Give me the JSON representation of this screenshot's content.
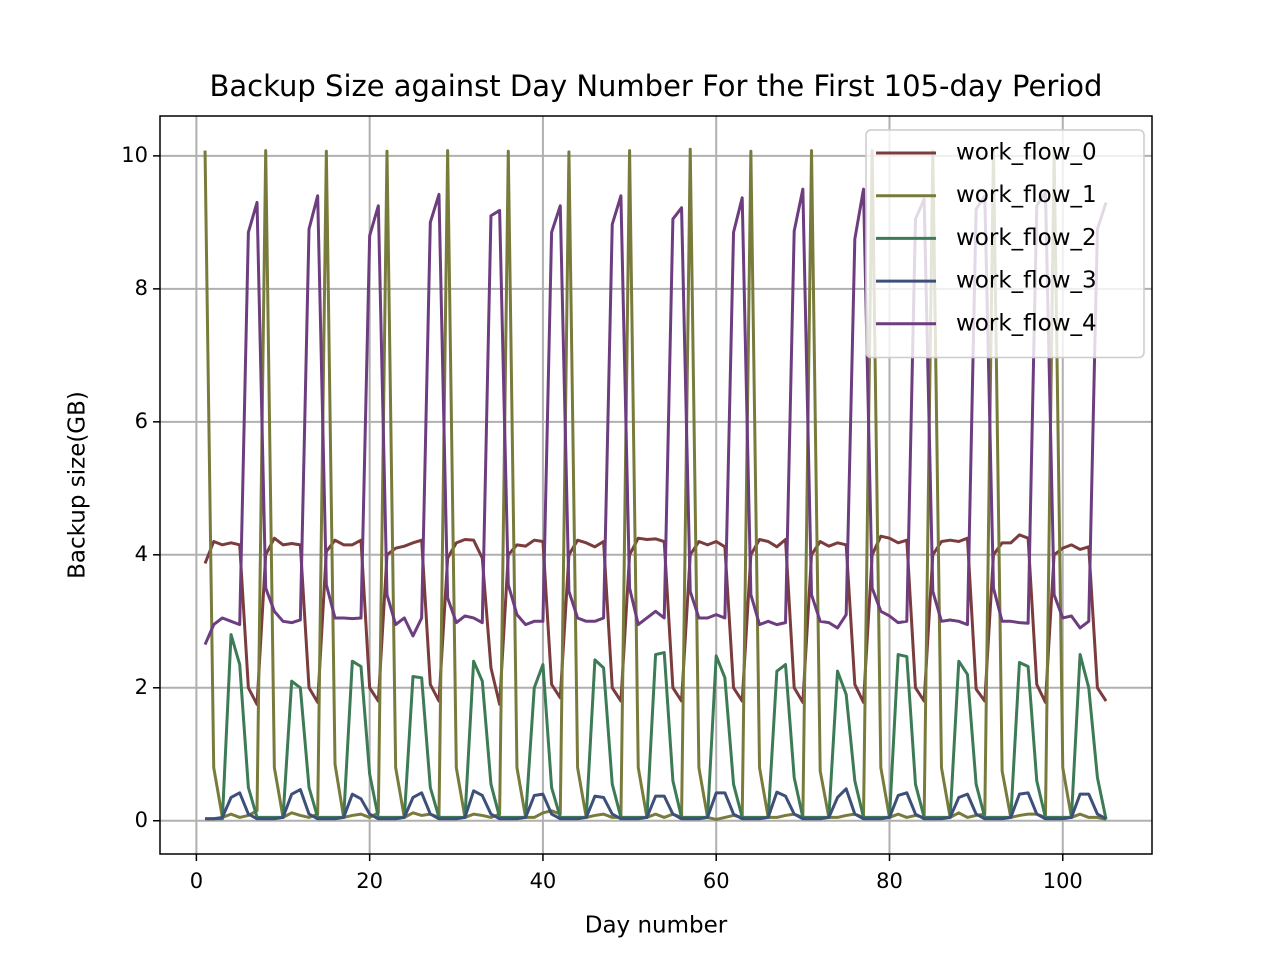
{
  "chart_data": {
    "type": "line",
    "title": "Backup Size against Day Number For the First 105-day Period",
    "xlabel": "Day number",
    "ylabel": "Backup size(GB)",
    "x": [
      1,
      2,
      3,
      4,
      5,
      6,
      7,
      8,
      9,
      10,
      11,
      12,
      13,
      14,
      15,
      16,
      17,
      18,
      19,
      20,
      21,
      22,
      23,
      24,
      25,
      26,
      27,
      28,
      29,
      30,
      31,
      32,
      33,
      34,
      35,
      36,
      37,
      38,
      39,
      40,
      41,
      42,
      43,
      44,
      45,
      46,
      47,
      48,
      49,
      50,
      51,
      52,
      53,
      54,
      55,
      56,
      57,
      58,
      59,
      60,
      61,
      62,
      63,
      64,
      65,
      66,
      67,
      68,
      69,
      70,
      71,
      72,
      73,
      74,
      75,
      76,
      77,
      78,
      79,
      80,
      81,
      82,
      83,
      84,
      85,
      86,
      87,
      88,
      89,
      90,
      91,
      92,
      93,
      94,
      95,
      96,
      97,
      98,
      99,
      100,
      101,
      102,
      103,
      104,
      105
    ],
    "series": [
      {
        "name": "work_flow_0",
        "color": "#7a3c3c",
        "values": [
          3.87,
          4.2,
          4.15,
          4.18,
          4.15,
          2.0,
          1.75,
          4.0,
          4.25,
          4.15,
          4.17,
          4.15,
          2.0,
          1.78,
          4.05,
          4.22,
          4.15,
          4.15,
          4.22,
          2.0,
          1.8,
          4.0,
          4.1,
          4.13,
          4.18,
          4.22,
          2.05,
          1.8,
          3.95,
          4.18,
          4.23,
          4.22,
          3.95,
          2.3,
          1.75,
          4.0,
          4.15,
          4.13,
          4.22,
          4.2,
          2.05,
          1.85,
          4.0,
          4.22,
          4.18,
          4.12,
          4.2,
          2.0,
          1.8,
          4.0,
          4.25,
          4.23,
          4.24,
          4.2,
          2.0,
          1.8,
          4.0,
          4.2,
          4.15,
          4.2,
          4.12,
          2.0,
          1.8,
          4.0,
          4.23,
          4.2,
          4.12,
          4.23,
          2.0,
          1.78,
          4.0,
          4.2,
          4.13,
          4.18,
          4.15,
          2.05,
          1.78,
          4.0,
          4.28,
          4.25,
          4.18,
          4.22,
          2.0,
          1.8,
          4.0,
          4.2,
          4.22,
          4.2,
          4.25,
          1.98,
          1.8,
          4.0,
          4.18,
          4.18,
          4.3,
          4.25,
          2.05,
          1.78,
          4.0,
          4.1,
          4.15,
          4.08,
          4.12,
          2.0,
          1.8
        ]
      },
      {
        "name": "work_flow_1",
        "color": "#787b3c",
        "values": [
          10.08,
          0.8,
          0.05,
          0.1,
          0.05,
          0.08,
          0.15,
          10.08,
          0.8,
          0.05,
          0.12,
          0.08,
          0.05,
          0.1,
          10.07,
          0.85,
          0.05,
          0.08,
          0.1,
          0.05,
          0.12,
          10.07,
          0.8,
          0.05,
          0.12,
          0.08,
          0.1,
          0.05,
          10.08,
          0.8,
          0.05,
          0.1,
          0.08,
          0.05,
          0.1,
          10.07,
          0.8,
          0.05,
          0.05,
          0.12,
          0.15,
          0.1,
          10.06,
          0.8,
          0.05,
          0.08,
          0.1,
          0.05,
          0.05,
          10.08,
          0.8,
          0.05,
          0.1,
          0.05,
          0.1,
          0.05,
          10.1,
          0.8,
          0.05,
          0.02,
          0.05,
          0.08,
          0.05,
          10.07,
          0.8,
          0.05,
          0.05,
          0.08,
          0.1,
          0.05,
          10.08,
          0.75,
          0.05,
          0.05,
          0.08,
          0.1,
          0.05,
          10.08,
          0.8,
          0.05,
          0.1,
          0.05,
          0.08,
          0.05,
          10.07,
          0.8,
          0.05,
          0.12,
          0.05,
          0.08,
          0.1,
          10.08,
          0.75,
          0.05,
          0.08,
          0.1,
          0.1,
          0.05,
          10.08,
          0.8,
          0.05,
          0.1,
          0.05,
          0.05,
          0.02
        ]
      },
      {
        "name": "work_flow_2",
        "color": "#3d7b56",
        "values": [
          0.03,
          0.03,
          0.03,
          2.8,
          2.35,
          0.5,
          0.05,
          0.05,
          0.05,
          0.05,
          2.1,
          2.0,
          0.5,
          0.05,
          0.05,
          0.05,
          0.05,
          2.4,
          2.32,
          0.7,
          0.05,
          0.05,
          0.05,
          0.05,
          2.17,
          2.15,
          0.5,
          0.05,
          0.05,
          0.05,
          0.05,
          2.4,
          2.1,
          0.55,
          0.05,
          0.05,
          0.05,
          0.05,
          2.0,
          2.35,
          0.5,
          0.05,
          0.05,
          0.05,
          0.05,
          2.42,
          2.3,
          0.55,
          0.05,
          0.05,
          0.05,
          0.05,
          2.5,
          2.53,
          0.6,
          0.05,
          0.05,
          0.05,
          0.05,
          2.48,
          2.15,
          0.55,
          0.05,
          0.05,
          0.05,
          0.05,
          2.25,
          2.35,
          0.65,
          0.05,
          0.05,
          0.05,
          0.05,
          2.25,
          1.9,
          0.6,
          0.05,
          0.05,
          0.05,
          0.05,
          2.5,
          2.47,
          0.55,
          0.05,
          0.05,
          0.05,
          0.05,
          2.4,
          2.2,
          0.55,
          0.05,
          0.05,
          0.05,
          0.05,
          2.38,
          2.32,
          0.6,
          0.05,
          0.05,
          0.05,
          0.05,
          2.5,
          2.0,
          0.65,
          0.02
        ]
      },
      {
        "name": "work_flow_3",
        "color": "#3d507a",
        "values": [
          0.03,
          0.03,
          0.05,
          0.35,
          0.42,
          0.1,
          0.03,
          0.03,
          0.03,
          0.05,
          0.4,
          0.47,
          0.1,
          0.03,
          0.03,
          0.03,
          0.05,
          0.4,
          0.33,
          0.1,
          0.03,
          0.03,
          0.03,
          0.05,
          0.35,
          0.42,
          0.1,
          0.03,
          0.03,
          0.03,
          0.05,
          0.45,
          0.38,
          0.1,
          0.03,
          0.03,
          0.03,
          0.05,
          0.38,
          0.4,
          0.1,
          0.03,
          0.03,
          0.03,
          0.05,
          0.37,
          0.35,
          0.1,
          0.03,
          0.03,
          0.03,
          0.05,
          0.37,
          0.37,
          0.1,
          0.03,
          0.03,
          0.03,
          0.05,
          0.42,
          0.42,
          0.1,
          0.03,
          0.03,
          0.03,
          0.05,
          0.43,
          0.37,
          0.1,
          0.03,
          0.03,
          0.03,
          0.05,
          0.35,
          0.48,
          0.1,
          0.03,
          0.03,
          0.03,
          0.05,
          0.38,
          0.42,
          0.1,
          0.03,
          0.03,
          0.03,
          0.05,
          0.35,
          0.4,
          0.1,
          0.03,
          0.03,
          0.03,
          0.05,
          0.4,
          0.42,
          0.1,
          0.03,
          0.03,
          0.03,
          0.05,
          0.4,
          0.4,
          0.1,
          0.03
        ]
      },
      {
        "name": "work_flow_4",
        "color": "#6d3d80",
        "values": [
          2.65,
          2.95,
          3.05,
          3.0,
          2.95,
          8.85,
          9.3,
          3.5,
          3.15,
          3.0,
          2.98,
          3.02,
          8.9,
          9.4,
          3.55,
          3.05,
          3.05,
          3.04,
          3.05,
          8.8,
          9.25,
          3.4,
          2.95,
          3.05,
          2.78,
          3.05,
          9.0,
          9.42,
          3.35,
          2.98,
          3.08,
          3.05,
          2.98,
          9.1,
          9.18,
          3.55,
          3.1,
          2.95,
          3.0,
          3.0,
          8.85,
          9.25,
          3.45,
          3.05,
          3.0,
          3.0,
          3.05,
          8.97,
          9.4,
          3.5,
          2.95,
          3.05,
          3.15,
          3.05,
          9.05,
          9.22,
          3.45,
          3.05,
          3.05,
          3.1,
          3.05,
          8.85,
          9.37,
          3.4,
          2.95,
          3.0,
          2.95,
          2.98,
          8.87,
          9.5,
          3.4,
          3.0,
          2.98,
          2.9,
          3.1,
          8.75,
          9.5,
          3.5,
          3.15,
          3.08,
          2.98,
          3.0,
          9.05,
          9.35,
          3.45,
          3.0,
          3.02,
          3.0,
          2.95,
          9.2,
          9.4,
          3.5,
          3.0,
          3.0,
          2.98,
          2.97,
          9.25,
          9.45,
          3.4,
          3.05,
          3.08,
          2.9,
          3.0,
          8.9,
          9.3
        ]
      }
    ],
    "xlim": [
      -4.2,
      110.3
    ],
    "ylim": [
      -0.5,
      10.6
    ],
    "xticks": [
      0,
      20,
      40,
      60,
      80,
      100
    ],
    "yticks": [
      0,
      2,
      4,
      6,
      8,
      10
    ],
    "grid": true,
    "legend": "upper right"
  }
}
